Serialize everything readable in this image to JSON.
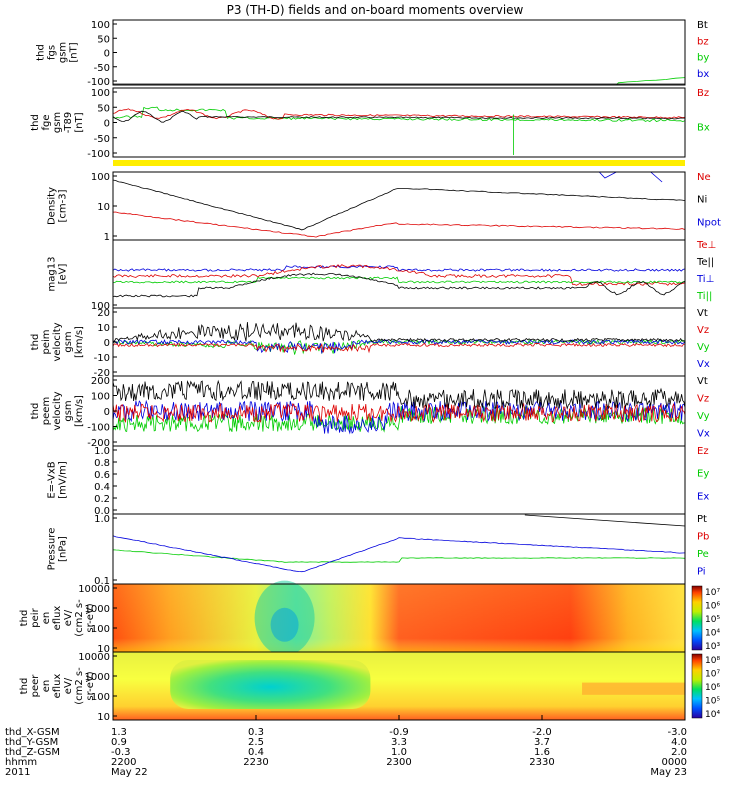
{
  "title": "P3 (TH-D) fields and on-board moments overview",
  "colors": {
    "black": "#000000",
    "red": "#dd0000",
    "green": "#00cc00",
    "blue": "#0000dd",
    "yellow": "#ffee00"
  },
  "chart_data": [
    {
      "type": "line",
      "id": "fgs",
      "ylabel": [
        "thd",
        "fgs",
        "gsm",
        "[nT]"
      ],
      "yticks": [
        "100",
        "50",
        "0",
        "-50",
        "-100"
      ],
      "ylim": [
        -100,
        100
      ],
      "legend": [
        "Bt",
        "bz",
        "by",
        "bx"
      ],
      "legend_colors": [
        "black",
        "red",
        "green",
        "blue"
      ]
    },
    {
      "type": "line",
      "id": "fge",
      "ylabel": [
        "thd",
        "fge",
        "gsm",
        "-T89",
        "[nT]"
      ],
      "yticks": [
        "100",
        "50",
        "0",
        "-50",
        "-100"
      ],
      "ylim": [
        -120,
        100
      ],
      "legend": [
        "Bz",
        "Bx"
      ],
      "legend_colors": [
        "red",
        "green"
      ]
    },
    {
      "type": "line",
      "id": "density",
      "ylabel": [
        "Density",
        "[cm-3]"
      ],
      "yticks": [
        "100",
        "10",
        "1"
      ],
      "ylim": [
        0.8,
        120
      ],
      "yscale": "log",
      "legend": [
        "Ne",
        "Ni",
        "Npot"
      ],
      "legend_colors": [
        "red",
        "black",
        "blue"
      ]
    },
    {
      "type": "line",
      "id": "temperature",
      "ylabel": [
        "mag13",
        "[eV]"
      ],
      "yticks": [
        "100"
      ],
      "legend": [
        "Te⊥",
        "Te||",
        "Ti⊥",
        "Ti||"
      ],
      "legend_colors": [
        "red",
        "black",
        "blue",
        "green"
      ]
    },
    {
      "type": "line",
      "id": "peim_vel",
      "ylabel": [
        "thd",
        "peim",
        "velocity",
        "gsm",
        "[km/s]"
      ],
      "yticks": [
        "20",
        "10",
        "0",
        "-10",
        "-20"
      ],
      "ylim": [
        -20,
        20
      ],
      "legend": [
        "Vt",
        "Vz",
        "Vy",
        "Vx"
      ],
      "legend_colors": [
        "black",
        "red",
        "green",
        "blue"
      ]
    },
    {
      "type": "line",
      "id": "peem_vel",
      "ylabel": [
        "thd",
        "peem",
        "velocity",
        "gsm",
        "[km/s]"
      ],
      "yticks": [
        "200",
        "100",
        "0",
        "-100",
        "-200"
      ],
      "ylim": [
        -200,
        200
      ],
      "legend": [
        "Vt",
        "Vz",
        "Vy",
        "Vx"
      ],
      "legend_colors": [
        "black",
        "red",
        "green",
        "blue"
      ]
    },
    {
      "type": "line",
      "id": "efield",
      "ylabel": [
        "E=-VxB",
        "[mV/m]"
      ],
      "yticks": [
        "1.0",
        "0.8",
        "0.6",
        "0.4",
        "0.2",
        "0.0"
      ],
      "ylim": [
        0,
        1
      ],
      "legend": [
        "Ez",
        "Ey",
        "Ex"
      ],
      "legend_colors": [
        "red",
        "green",
        "blue"
      ]
    },
    {
      "type": "line",
      "id": "pressure",
      "ylabel": [
        "Pressure",
        "[nPa]"
      ],
      "yticks": [
        "1.0",
        "0.1"
      ],
      "yscale": "log",
      "legend": [
        "Pt",
        "Pb",
        "Pe",
        "Pi"
      ],
      "legend_colors": [
        "black",
        "red",
        "green",
        "blue"
      ]
    },
    {
      "type": "heatmap",
      "id": "peir_spec",
      "ylabel": [
        "thd",
        "peir",
        "en",
        "eflux",
        "eV/",
        "(cm2 s-",
        "sr-eV)"
      ],
      "yticks": [
        "10000",
        "1000",
        "100",
        "10"
      ],
      "ylim": [
        5,
        20000
      ],
      "colorbar": {
        "ticks": [
          "10⁷",
          "10⁶",
          "10⁵",
          "10⁴",
          "10³"
        ]
      }
    },
    {
      "type": "heatmap",
      "id": "peer_spec",
      "ylabel": [
        "thd",
        "peer",
        "en",
        "eflux",
        "eV/",
        "(cm2 s-",
        "sr-eV)"
      ],
      "yticks": [
        "10000",
        "1000",
        "100",
        "10"
      ],
      "ylim": [
        5,
        20000
      ],
      "colorbar": {
        "ticks": [
          "10⁸",
          "10⁷",
          "10⁶",
          "10⁵",
          "10⁴"
        ]
      }
    }
  ],
  "xaxis": {
    "row_labels": [
      "thd_X-GSM",
      "thd_Y-GSM",
      "thd_Z-GSM",
      "hhmm",
      "2011"
    ],
    "columns": [
      {
        "values": [
          "1.3",
          "0.9",
          "-0.3",
          "2200",
          "May 22"
        ]
      },
      {
        "values": [
          "0.3",
          "2.5",
          "0.4",
          "2230",
          ""
        ]
      },
      {
        "values": [
          "-0.9",
          "3.3",
          "1.0",
          "2300",
          ""
        ]
      },
      {
        "values": [
          "-2.0",
          "3.7",
          "1.6",
          "2330",
          ""
        ]
      },
      {
        "values": [
          "-3.0",
          "4.0",
          "2.0",
          "0000",
          "May 23"
        ]
      }
    ]
  }
}
